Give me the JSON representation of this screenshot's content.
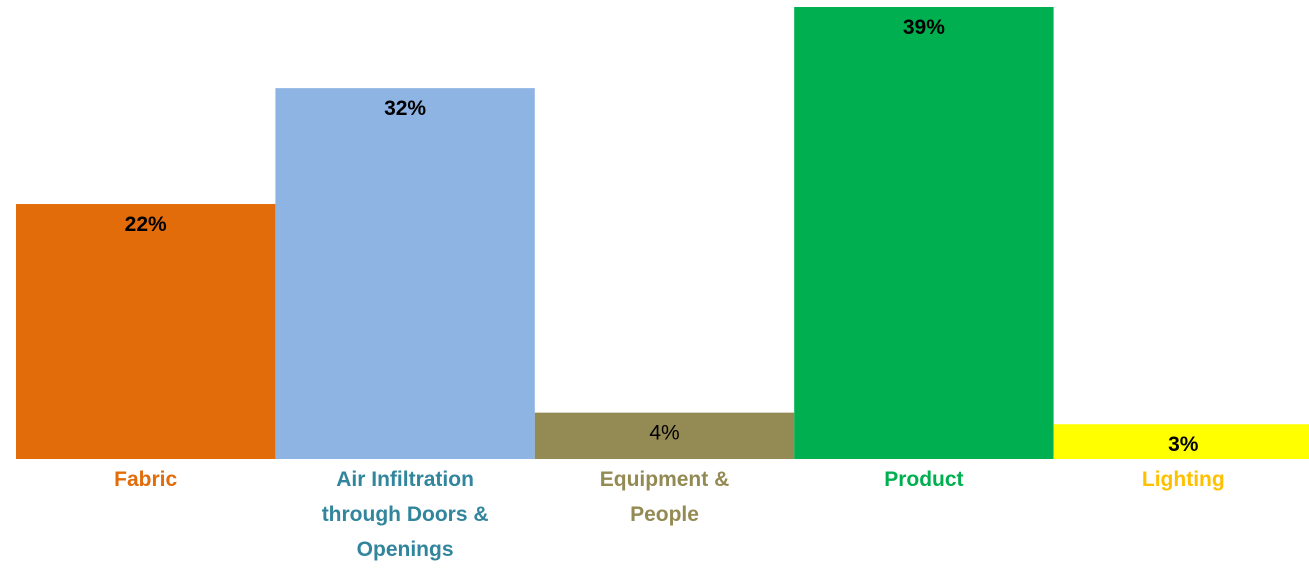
{
  "chart_data": {
    "type": "bar",
    "title": "",
    "xlabel": "",
    "ylabel": "",
    "ylim": [
      0,
      39
    ],
    "grid": false,
    "legend": "none",
    "categories": [
      "Fabric",
      "Air Infiltration through Doors & Openings",
      "Equipment & People",
      "Product",
      "Lighting"
    ],
    "category_lines": [
      [
        "Fabric"
      ],
      [
        "Air Infiltration",
        "through Doors &",
        "Openings"
      ],
      [
        "Equipment &",
        "People"
      ],
      [
        "Product"
      ],
      [
        "Lighting"
      ]
    ],
    "values": [
      22,
      32,
      4,
      39,
      3
    ],
    "value_labels": [
      "22%",
      "32%",
      "4%",
      "39%",
      "3%"
    ],
    "value_label_bold": [
      true,
      true,
      false,
      true,
      true
    ],
    "bar_colors": [
      "#E26B0A",
      "#8DB4E2",
      "#948A54",
      "#00B050",
      "#FFFF00"
    ],
    "label_colors": [
      "#E26B0A",
      "#31859C",
      "#948A54",
      "#00B050",
      "#FFC000"
    ]
  }
}
